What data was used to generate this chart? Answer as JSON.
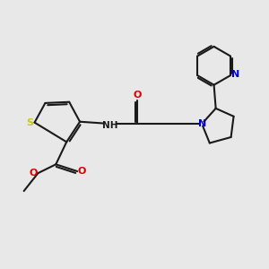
{
  "bg_color": "#e8e8e8",
  "bond_color": "#1a1a1a",
  "s_color": "#cccc00",
  "o_color": "#dd0000",
  "n_color": "#0000cc",
  "bond_width": 1.5,
  "lw": 1.5,
  "xlim": [
    0,
    10
  ],
  "ylim": [
    0,
    10
  ],
  "figsize": [
    3.0,
    3.0
  ],
  "dpi": 100,
  "font_size": 7.5
}
